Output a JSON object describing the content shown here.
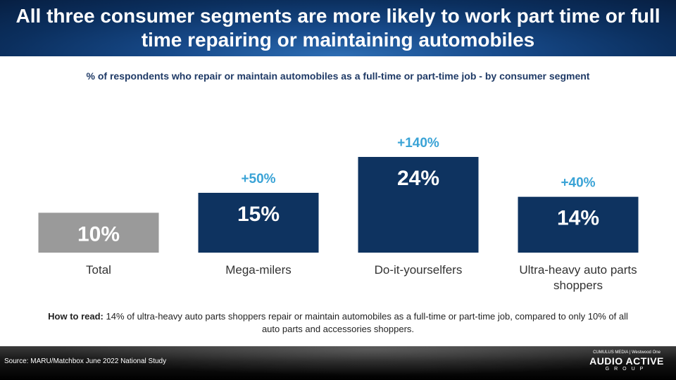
{
  "title": "All three consumer segments are more likely to work part time or full time repairing or maintaining automobiles",
  "subtitle": "% of respondents  who repair or maintain automobiles as a full-time or part-time job - by consumer segment",
  "chart_data": {
    "type": "bar",
    "categories": [
      "Total",
      "Mega-milers",
      "Do-it-yourselfers",
      "Ultra-heavy auto parts shoppers"
    ],
    "values": [
      10,
      15,
      24,
      14
    ],
    "value_labels": [
      "10%",
      "15%",
      "24%",
      "14%"
    ],
    "lift_labels": [
      "",
      "+50%",
      "+140%",
      "+40%"
    ],
    "ylim": [
      0,
      24
    ],
    "colors": {
      "total": "#9a9a9a",
      "segment": "#0e3360",
      "lift": "#3aa3d6",
      "value_text": "#ffffff",
      "category_text": "#333333"
    }
  },
  "how_to_read": {
    "lead": "How to read:",
    "text": " 14% of ultra-heavy auto parts shoppers repair or maintain automobiles as a full-time or part-time job, compared to only 10% of all auto parts and accessories shoppers."
  },
  "footer": {
    "source": "Source: MARU/Matchbox June 2022 National Study",
    "logo_top": "CUMULUS MEDIA | Westwood One",
    "logo_main": "AUDIO ACTIVE",
    "logo_sub": "GROUP"
  }
}
